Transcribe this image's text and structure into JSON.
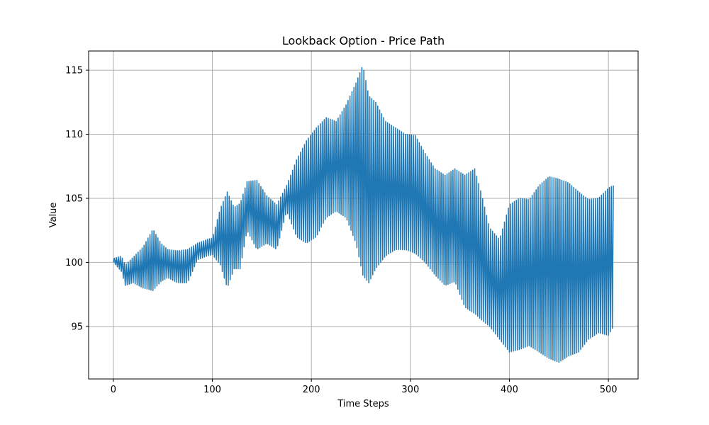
{
  "chart_data": {
    "type": "line",
    "title": "Lookback Option - Price Path",
    "xlabel": "Time Steps",
    "ylabel": "Value",
    "xlim": [
      -25,
      530
    ],
    "ylim": [
      90.9,
      116.5
    ],
    "xticks": [
      0,
      100,
      200,
      300,
      400,
      500
    ],
    "xtick_labels": [
      "0",
      "100",
      "200",
      "300",
      "400",
      "500"
    ],
    "yticks": [
      95,
      100,
      105,
      110,
      115
    ],
    "ytick_labels": [
      "95",
      "100",
      "105",
      "110",
      "115"
    ],
    "grid": true,
    "legend": "none",
    "x_range": [
      0,
      505
    ],
    "series": [
      {
        "color": "#1f77b4",
        "line_width": 1.5,
        "oscillation_period_steps": 2,
        "upper_envelope": [
          [
            0,
            100.3
          ],
          [
            8,
            100.5
          ],
          [
            12,
            99.8
          ],
          [
            20,
            100.4
          ],
          [
            30,
            101.2
          ],
          [
            40,
            102.6
          ],
          [
            48,
            101.5
          ],
          [
            55,
            101.0
          ],
          [
            65,
            100.9
          ],
          [
            75,
            101.0
          ],
          [
            85,
            101.5
          ],
          [
            95,
            101.8
          ],
          [
            100,
            101.9
          ],
          [
            108,
            104.2
          ],
          [
            115,
            105.5
          ],
          [
            122,
            104.3
          ],
          [
            128,
            104.6
          ],
          [
            135,
            106.3
          ],
          [
            145,
            106.4
          ],
          [
            155,
            105.2
          ],
          [
            165,
            104.5
          ],
          [
            175,
            106.0
          ],
          [
            185,
            108.0
          ],
          [
            195,
            109.5
          ],
          [
            205,
            110.5
          ],
          [
            215,
            111.3
          ],
          [
            225,
            111.0
          ],
          [
            235,
            112.3
          ],
          [
            245,
            114.0
          ],
          [
            252,
            115.4
          ],
          [
            258,
            113.0
          ],
          [
            265,
            112.5
          ],
          [
            275,
            111.0
          ],
          [
            285,
            110.5
          ],
          [
            295,
            110.0
          ],
          [
            305,
            109.9
          ],
          [
            315,
            108.5
          ],
          [
            325,
            107.3
          ],
          [
            335,
            106.8
          ],
          [
            345,
            107.3
          ],
          [
            355,
            106.8
          ],
          [
            365,
            107.3
          ],
          [
            372,
            105.3
          ],
          [
            380,
            102.7
          ],
          [
            390,
            101.8
          ],
          [
            400,
            104.5
          ],
          [
            410,
            105.0
          ],
          [
            420,
            104.9
          ],
          [
            430,
            106.0
          ],
          [
            440,
            106.7
          ],
          [
            450,
            106.5
          ],
          [
            460,
            106.2
          ],
          [
            470,
            105.5
          ],
          [
            480,
            104.9
          ],
          [
            490,
            105.0
          ],
          [
            500,
            105.8
          ],
          [
            505,
            106.0
          ]
        ],
        "lower_envelope": [
          [
            0,
            100.0
          ],
          [
            8,
            99.3
          ],
          [
            12,
            98.2
          ],
          [
            20,
            98.4
          ],
          [
            30,
            98.0
          ],
          [
            40,
            97.8
          ],
          [
            48,
            98.5
          ],
          [
            55,
            98.8
          ],
          [
            65,
            98.4
          ],
          [
            75,
            98.4
          ],
          [
            85,
            100.2
          ],
          [
            95,
            100.5
          ],
          [
            100,
            100.6
          ],
          [
            108,
            99.8
          ],
          [
            115,
            98.0
          ],
          [
            122,
            99.5
          ],
          [
            128,
            99.5
          ],
          [
            135,
            102.5
          ],
          [
            145,
            101.0
          ],
          [
            155,
            101.5
          ],
          [
            165,
            101.0
          ],
          [
            175,
            104.0
          ],
          [
            185,
            102.0
          ],
          [
            195,
            101.5
          ],
          [
            205,
            102.0
          ],
          [
            215,
            103.5
          ],
          [
            225,
            104.0
          ],
          [
            235,
            103.5
          ],
          [
            245,
            101.5
          ],
          [
            252,
            99.0
          ],
          [
            258,
            98.4
          ],
          [
            265,
            99.5
          ],
          [
            275,
            100.5
          ],
          [
            285,
            101.0
          ],
          [
            295,
            101.0
          ],
          [
            305,
            100.7
          ],
          [
            315,
            100.0
          ],
          [
            325,
            99.0
          ],
          [
            335,
            98.2
          ],
          [
            345,
            98.5
          ],
          [
            355,
            96.5
          ],
          [
            365,
            96.0
          ],
          [
            372,
            95.5
          ],
          [
            380,
            95.0
          ],
          [
            390,
            94.0
          ],
          [
            400,
            93.0
          ],
          [
            410,
            93.2
          ],
          [
            420,
            93.5
          ],
          [
            430,
            93.0
          ],
          [
            440,
            92.5
          ],
          [
            450,
            92.2
          ],
          [
            460,
            92.7
          ],
          [
            470,
            93.0
          ],
          [
            480,
            94.0
          ],
          [
            490,
            94.5
          ],
          [
            500,
            94.3
          ],
          [
            505,
            95.0
          ]
        ]
      }
    ]
  }
}
